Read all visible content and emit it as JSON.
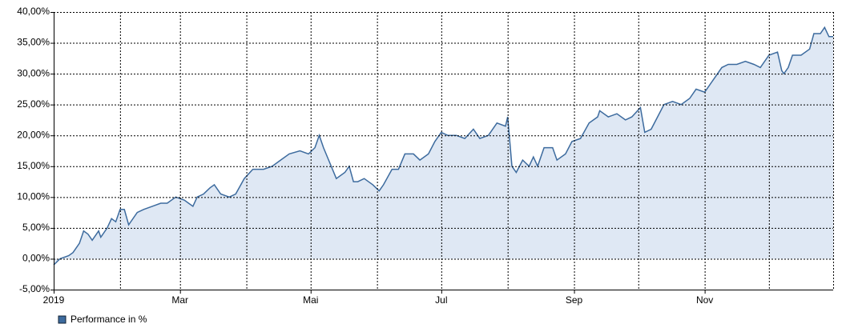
{
  "chart_data": {
    "type": "area",
    "x": [
      0,
      3,
      7,
      9,
      12,
      14,
      16,
      18,
      21,
      22,
      25,
      27,
      29,
      31,
      33,
      35,
      39,
      42,
      46,
      50,
      53,
      57,
      61,
      65,
      67,
      70,
      73,
      75,
      78,
      82,
      85,
      89,
      93,
      98,
      102,
      106,
      110,
      115,
      119,
      122,
      124,
      126,
      129,
      132,
      136,
      138,
      140,
      142,
      145,
      149,
      152,
      154,
      158,
      161,
      164,
      168,
      171,
      175,
      178,
      181,
      184,
      188,
      192,
      196,
      199,
      203,
      207,
      211,
      212,
      214,
      216,
      219,
      222,
      224,
      226,
      229,
      233,
      235,
      239,
      242,
      246,
      250,
      254,
      255,
      259,
      263,
      267,
      270,
      274,
      276,
      279,
      282,
      285,
      289,
      293,
      297,
      300,
      304,
      308,
      312,
      315,
      319,
      323,
      327,
      330,
      334,
      338,
      340,
      341,
      343,
      345,
      349,
      353,
      355,
      358,
      360,
      362,
      364
    ],
    "series": [
      {
        "name": "Performance in %",
        "color": "#3d6b9e",
        "fill": "#dfe8f4",
        "values": [
          -1,
          0,
          0.5,
          1,
          2.5,
          4.5,
          4,
          3,
          4.5,
          3.5,
          5,
          6.5,
          6,
          8,
          8,
          5.5,
          7.5,
          8,
          8.5,
          9,
          9,
          10,
          9.5,
          8.5,
          10,
          10.5,
          11.5,
          12,
          10.5,
          10,
          10.5,
          13,
          14.5,
          14.5,
          15,
          16,
          17,
          17.5,
          17,
          18,
          20,
          18,
          15.5,
          13,
          14,
          15,
          12.5,
          12.5,
          13,
          12,
          11,
          12,
          14.5,
          14.5,
          17,
          17,
          16,
          17,
          19,
          20.5,
          20,
          20,
          19.5,
          21,
          19.5,
          20,
          22,
          21.5,
          23,
          15,
          14,
          16,
          15,
          16.5,
          15,
          18,
          18,
          16,
          17,
          19,
          19.5,
          22,
          23,
          24,
          23,
          23.5,
          22.5,
          23,
          24.5,
          20.5,
          21,
          23,
          25,
          25.5,
          25,
          26,
          27.5,
          27,
          29,
          31,
          31.5,
          31.5,
          32,
          31.5,
          31,
          33,
          33.5,
          30.5,
          30,
          31,
          33,
          33,
          34,
          36.5,
          36.5,
          37.5,
          36,
          36
        ]
      }
    ],
    "xlim": [
      0,
      364
    ],
    "xticks": [
      {
        "value": 0,
        "label": "2019"
      },
      {
        "value": 59,
        "label": "Mar"
      },
      {
        "value": 120,
        "label": "Mai"
      },
      {
        "value": 181,
        "label": "Jul"
      },
      {
        "value": 243,
        "label": "Sep"
      },
      {
        "value": 304,
        "label": "Nov"
      }
    ],
    "xgrid": [
      31,
      90,
      151,
      212,
      273,
      334
    ],
    "ylim": [
      -5,
      40
    ],
    "yticks": [
      {
        "value": -5,
        "label": "-5,00%"
      },
      {
        "value": 0,
        "label": "0,00%"
      },
      {
        "value": 5,
        "label": "5,00%"
      },
      {
        "value": 10,
        "label": "10,00%"
      },
      {
        "value": 15,
        "label": "15,00%"
      },
      {
        "value": 20,
        "label": "20,00%"
      },
      {
        "value": 25,
        "label": "25,00%"
      },
      {
        "value": 30,
        "label": "30,00%"
      },
      {
        "value": 35,
        "label": "35,00%"
      },
      {
        "value": 40,
        "label": "40,00%"
      }
    ],
    "grid": true,
    "legend": "bottom-left"
  }
}
